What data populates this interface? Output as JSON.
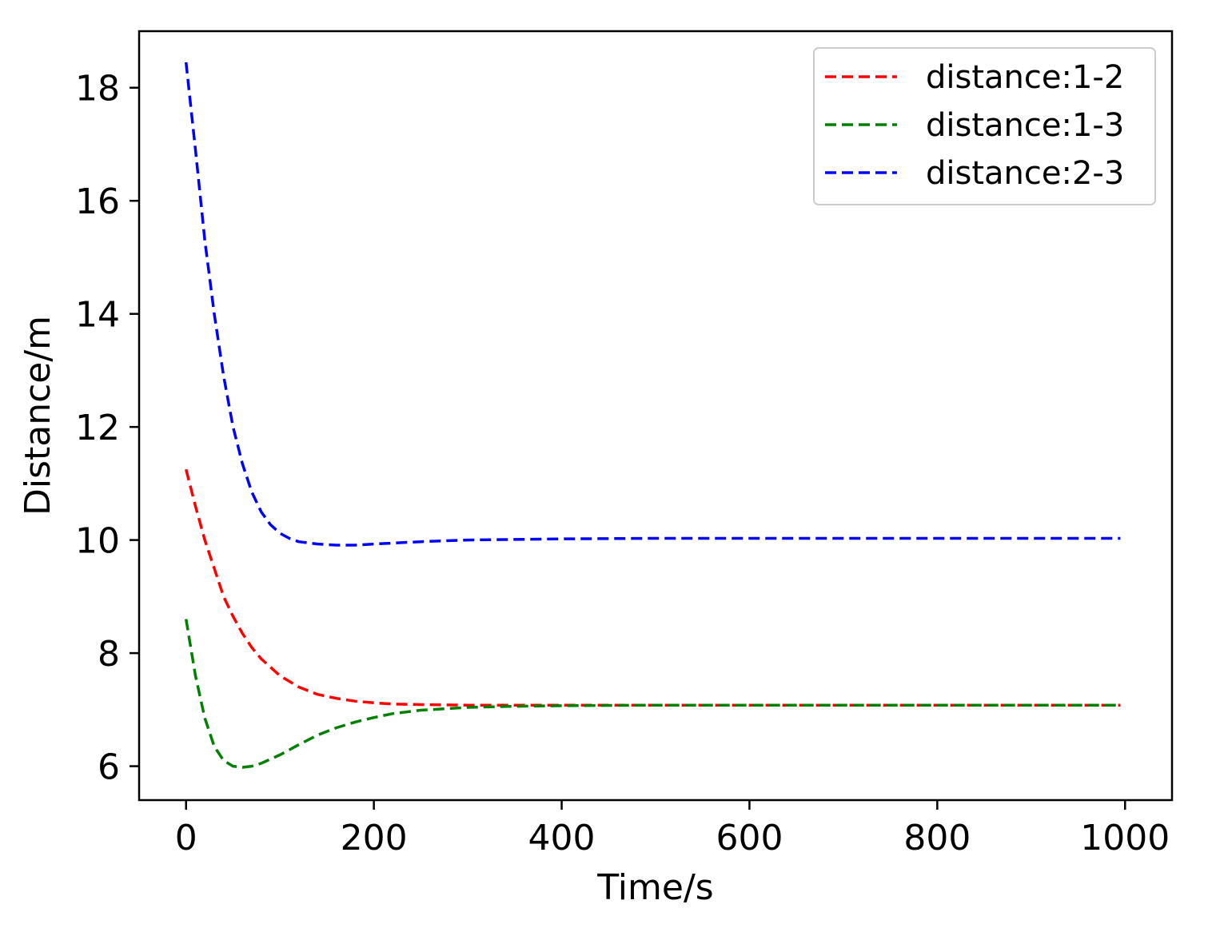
{
  "chart_data": {
    "type": "line",
    "title": "",
    "xlabel": "Time/s",
    "ylabel": "Distance/m",
    "xlim": [
      -50,
      1050
    ],
    "ylim": [
      5.4,
      19.0
    ],
    "xticks": [
      0,
      200,
      400,
      600,
      800,
      1000
    ],
    "xtick_labels": [
      "0",
      "200",
      "400",
      "600",
      "800",
      "1000"
    ],
    "yticks": [
      6,
      8,
      10,
      12,
      14,
      16,
      18
    ],
    "ytick_labels": [
      "6",
      "8",
      "10",
      "12",
      "14",
      "16",
      "18"
    ],
    "grid": false,
    "legend_position": "top-right",
    "line_style": "dashed",
    "series": [
      {
        "name": "distance:1-2",
        "color": "#ff0000",
        "x": [
          0,
          10,
          20,
          30,
          40,
          50,
          60,
          70,
          80,
          100,
          120,
          140,
          160,
          180,
          200,
          220,
          250,
          300,
          400,
          500,
          600,
          700,
          800,
          900,
          995
        ],
        "y": [
          11.25,
          10.6,
          10.0,
          9.5,
          9.0,
          8.65,
          8.35,
          8.1,
          7.9,
          7.6,
          7.4,
          7.27,
          7.2,
          7.15,
          7.12,
          7.1,
          7.09,
          7.08,
          7.08,
          7.08,
          7.08,
          7.08,
          7.08,
          7.08,
          7.08
        ]
      },
      {
        "name": "distance:1-3",
        "color": "#008000",
        "x": [
          0,
          5,
          10,
          20,
          30,
          40,
          50,
          60,
          70,
          80,
          100,
          120,
          140,
          160,
          180,
          200,
          220,
          250,
          300,
          350,
          400,
          500,
          600,
          700,
          800,
          900,
          995
        ],
        "y": [
          8.6,
          8.1,
          7.6,
          6.85,
          6.35,
          6.1,
          6.0,
          5.98,
          6.0,
          6.05,
          6.2,
          6.38,
          6.55,
          6.68,
          6.78,
          6.86,
          6.93,
          6.99,
          7.04,
          7.06,
          7.07,
          7.08,
          7.08,
          7.08,
          7.08,
          7.08,
          7.08
        ]
      },
      {
        "name": "distance:2-3",
        "color": "#0000ff",
        "x": [
          0,
          10,
          20,
          30,
          40,
          50,
          60,
          70,
          80,
          90,
          100,
          110,
          120,
          140,
          160,
          180,
          200,
          250,
          300,
          400,
          500,
          600,
          700,
          800,
          900,
          995
        ],
        "y": [
          18.45,
          16.9,
          15.3,
          14.0,
          12.9,
          12.0,
          11.35,
          10.85,
          10.5,
          10.27,
          10.12,
          10.03,
          9.97,
          9.93,
          9.91,
          9.91,
          9.93,
          9.97,
          10.0,
          10.02,
          10.03,
          10.03,
          10.03,
          10.03,
          10.03,
          10.03
        ]
      }
    ]
  }
}
